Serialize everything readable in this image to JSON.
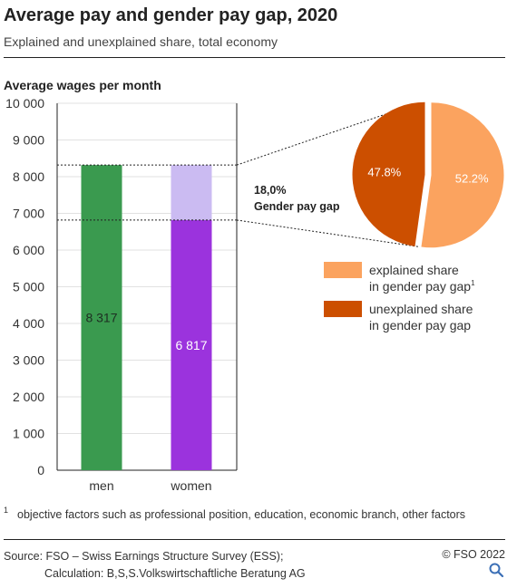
{
  "header": {
    "title": "Average pay and gender pay gap, 2020",
    "subtitle": "Explained and unexplained share, total economy"
  },
  "colors": {
    "men": "#3a9a4f",
    "women_paid": "#9b33dd",
    "women_gap": "#cbbbf2",
    "explained": "#fba35f",
    "unexplained": "#cc4f00",
    "gridline": "#e1e1e1",
    "axis": "#222222"
  },
  "chart_data": {
    "type": "bar",
    "ylabel": "Average wages per month",
    "xlabel": "",
    "ylim": [
      0,
      10000
    ],
    "yticks": [
      0,
      1000,
      2000,
      3000,
      4000,
      5000,
      6000,
      7000,
      8000,
      9000,
      10000
    ],
    "ytick_labels": [
      "0",
      "1 000",
      "2 000",
      "3 000",
      "4 000",
      "5 000",
      "6 000",
      "7 000",
      "8 000",
      "9 000",
      "10 000"
    ],
    "grid": true,
    "categories": [
      "men",
      "women"
    ],
    "values": [
      8317,
      6817
    ],
    "value_labels": [
      "8 317",
      "6 817"
    ],
    "gender_pay_gap": {
      "value": "18,0%",
      "label": "Gender pay gap"
    },
    "pie": {
      "type": "pie",
      "slices": [
        {
          "label": "explained share in gender pay gap",
          "value": 52.2,
          "display": "52.2%",
          "color_key": "explained"
        },
        {
          "label": "unexplained share in gender pay gap",
          "value": 47.8,
          "display": "47.8%",
          "color_key": "unexplained"
        }
      ]
    }
  },
  "legend": {
    "explained_line1": "explained share",
    "explained_line2": "in gender pay gap",
    "explained_marker": "1",
    "unexplained_line1": "unexplained share",
    "unexplained_line2": "in gender pay gap"
  },
  "footnote": {
    "marker": "1",
    "text": "objective factors such as professional position, education, economic branch, other factors"
  },
  "source": {
    "line1": "Source: FSO – Swiss Earnings Structure Survey (ESS);",
    "line2": "Calculation: B,S,S.Volkswirtschaftliche Beratung AG"
  },
  "copyright": "© FSO 2022",
  "icons": {
    "search": "search-icon"
  }
}
